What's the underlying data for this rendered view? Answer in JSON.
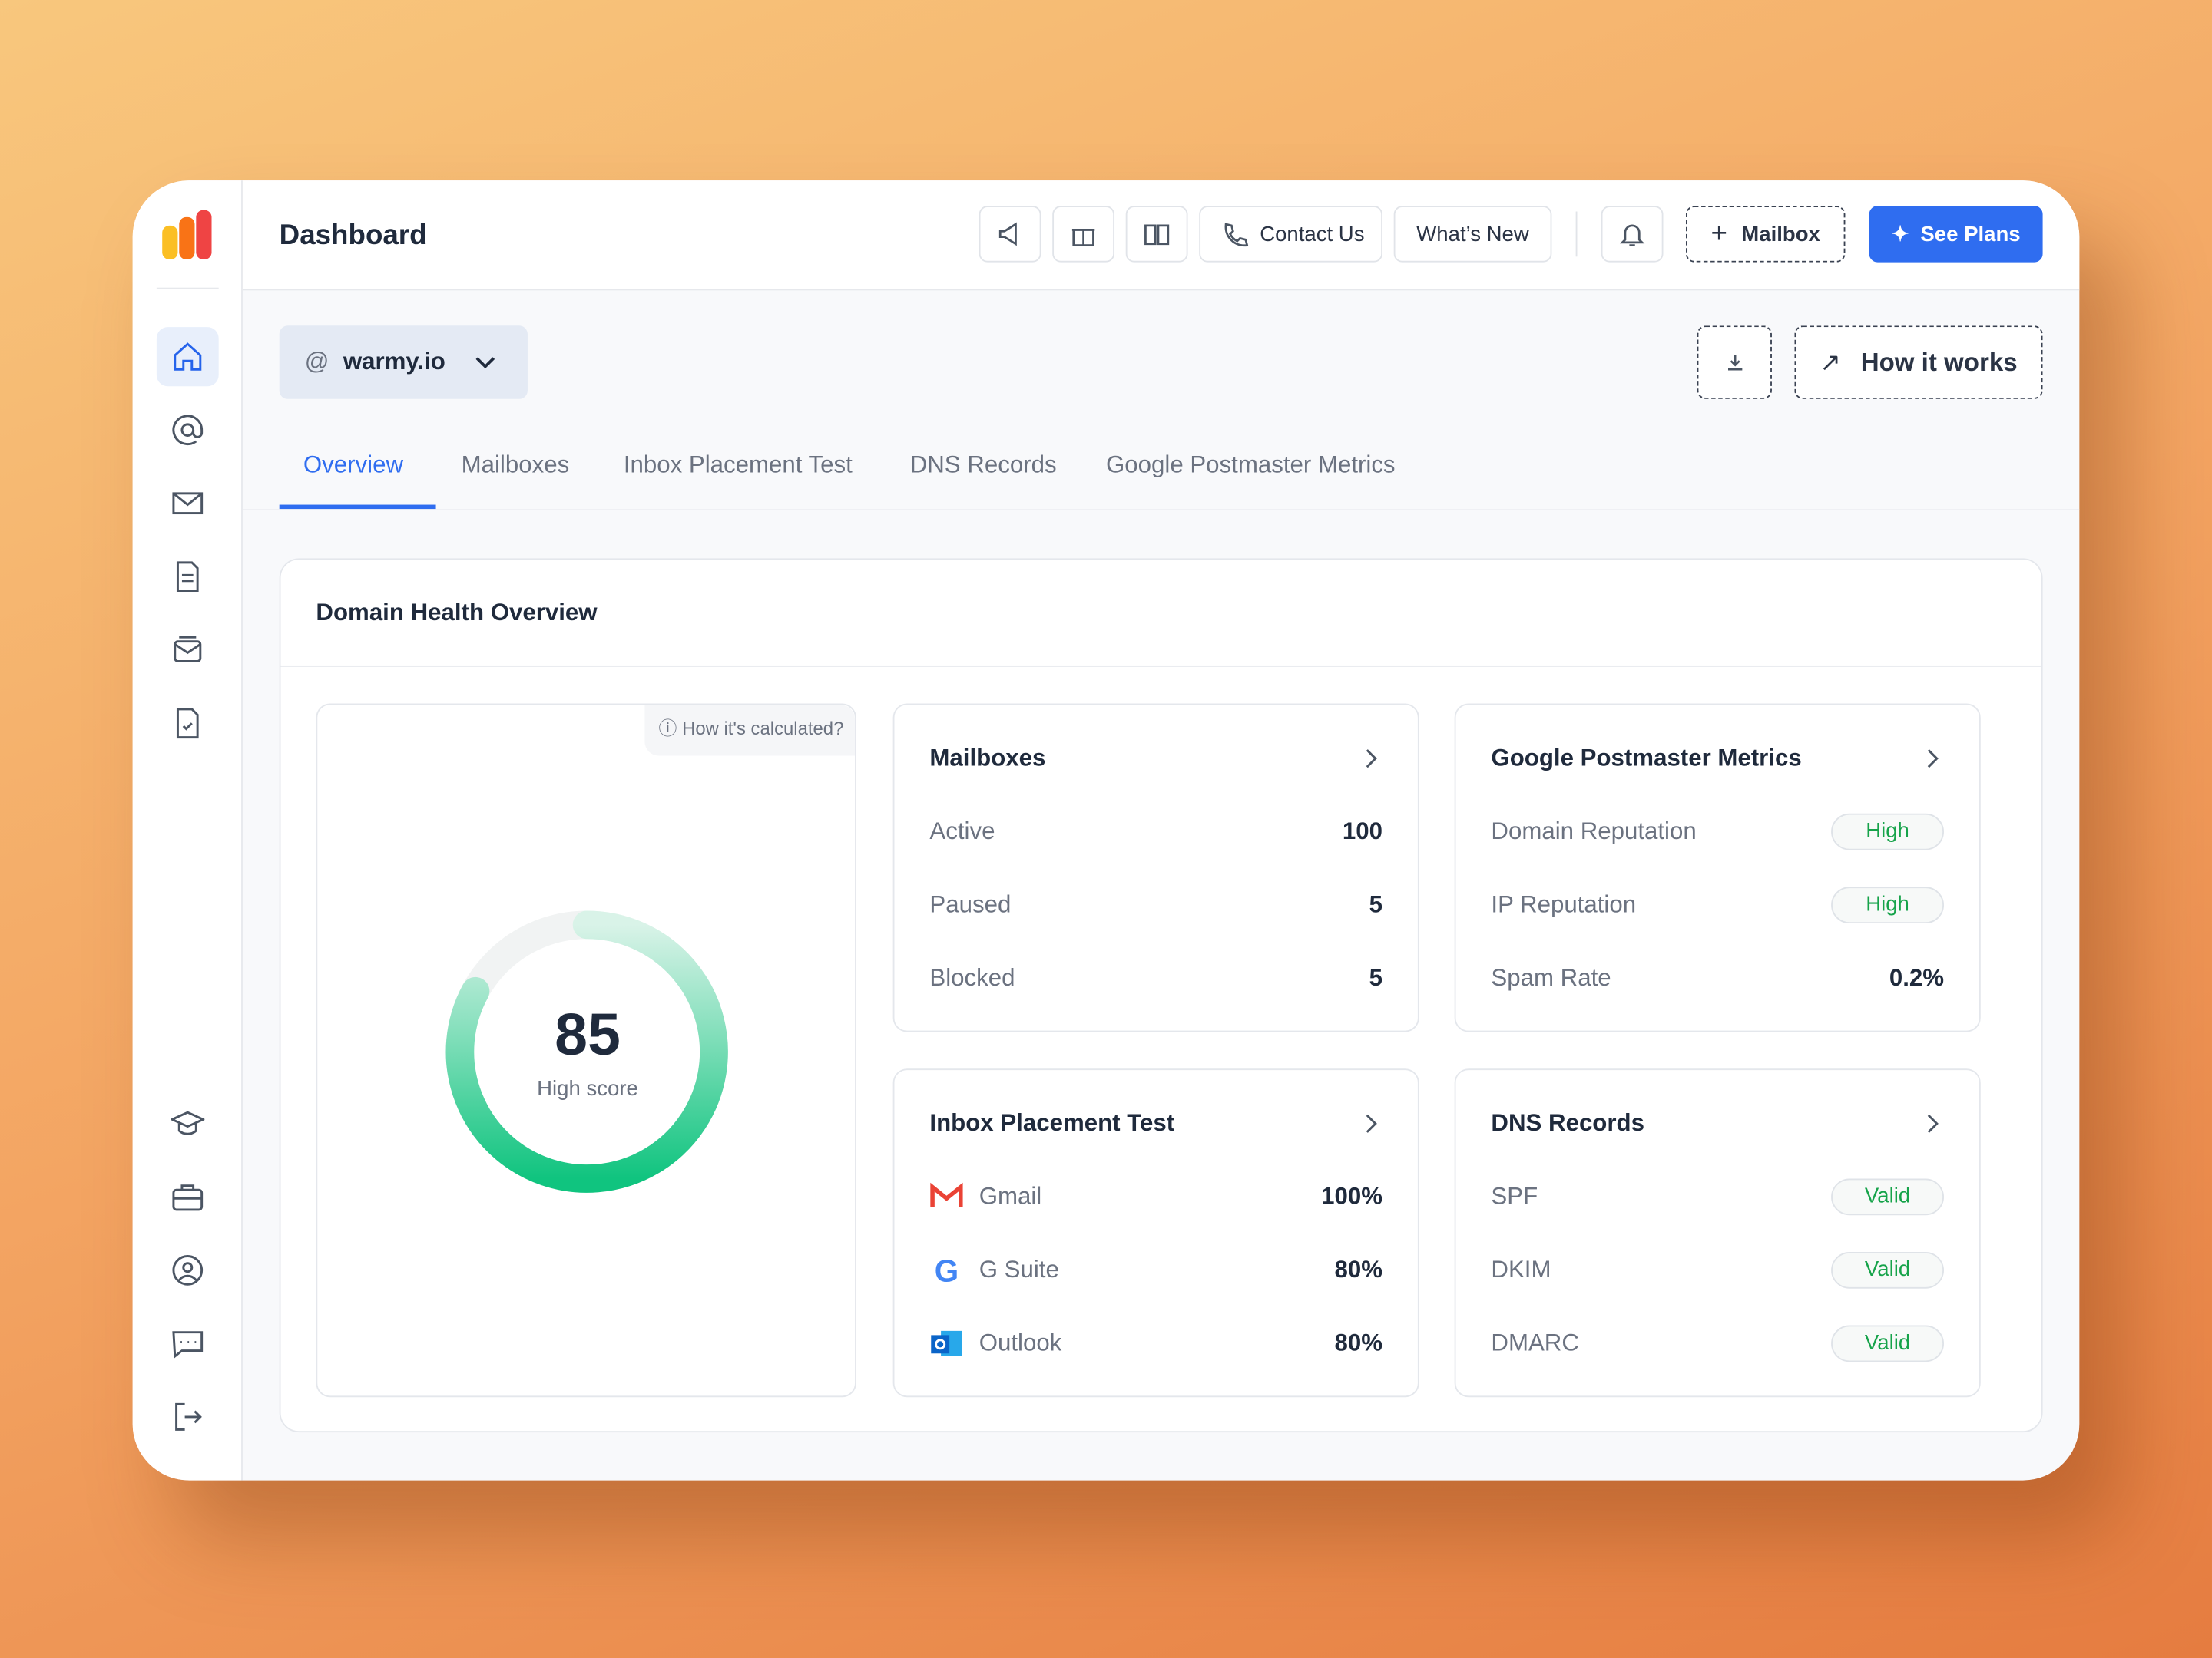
{
  "header": {
    "title": "Dashboard",
    "contact": "Contact Us",
    "whats_new": "What’s New",
    "mailbox": "Mailbox",
    "plans": "See Plans"
  },
  "domain": "warmy.io",
  "how_it_works": "How it works",
  "tabs": [
    "Overview",
    "Mailboxes",
    "Inbox Placement Test",
    "DNS Records",
    "Google Postmaster Metrics"
  ],
  "panel": {
    "title": "Domain Health Overview",
    "score": {
      "value": "85",
      "label": "High score",
      "help": "How it's calculated?"
    },
    "cards": [
      {
        "title": "Mailboxes",
        "rows": [
          {
            "label": "Active",
            "value": "100"
          },
          {
            "label": "Paused",
            "value": "5"
          },
          {
            "label": "Blocked",
            "value": "5"
          }
        ]
      },
      {
        "title": "Google Postmaster Metrics",
        "rows": [
          {
            "label": "Domain Reputation",
            "badge": "High"
          },
          {
            "label": "IP Reputation",
            "badge": "High"
          },
          {
            "label": "Spam Rate",
            "value": "0.2%"
          }
        ]
      },
      {
        "title": "Inbox Placement Test",
        "rows": [
          {
            "label": "Gmail",
            "value": "100%"
          },
          {
            "label": "G Suite",
            "value": "80%"
          },
          {
            "label": "Outlook",
            "value": "80%"
          }
        ]
      },
      {
        "title": "DNS Records",
        "rows": [
          {
            "label": "SPF",
            "badge": "Valid"
          },
          {
            "label": "DKIM",
            "badge": "Valid"
          },
          {
            "label": "DMARC",
            "badge": "Valid"
          }
        ]
      }
    ]
  }
}
